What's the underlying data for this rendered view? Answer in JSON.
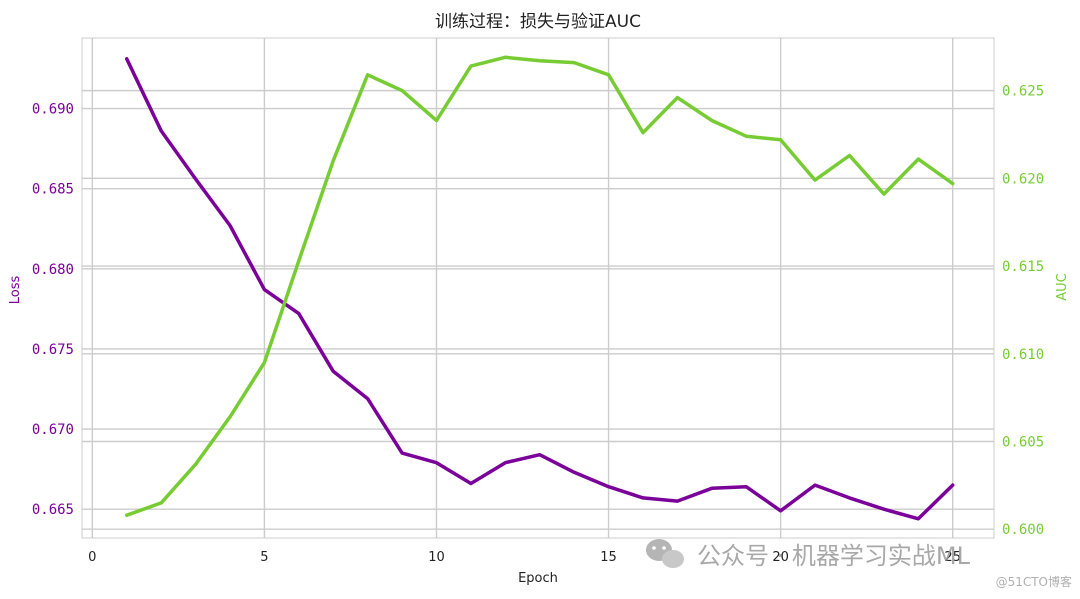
{
  "chart_data": {
    "type": "line",
    "title": "训练过程：损失与验证AUC",
    "xlabel": "Epoch",
    "ylabel_left": "Loss",
    "ylabel_right": "AUC",
    "x": [
      1,
      2,
      3,
      4,
      5,
      6,
      7,
      8,
      9,
      10,
      11,
      12,
      13,
      14,
      15,
      16,
      17,
      18,
      19,
      20,
      21,
      22,
      23,
      24,
      25
    ],
    "xlim": [
      -0.3,
      26.2
    ],
    "xticks": [
      0,
      5,
      10,
      15,
      20,
      25
    ],
    "series": [
      {
        "name": "Loss",
        "axis": "left",
        "color": "#7a0099",
        "values": [
          0.6931,
          0.6886,
          0.6856,
          0.6827,
          0.6787,
          0.6772,
          0.6736,
          0.6719,
          0.6685,
          0.6679,
          0.6666,
          0.6679,
          0.6684,
          0.6673,
          0.6664,
          0.6657,
          0.6655,
          0.6663,
          0.6664,
          0.6649,
          0.6665,
          0.6657,
          0.665,
          0.6644,
          0.6665
        ]
      },
      {
        "name": "AUC",
        "axis": "right",
        "color": "#77cc33",
        "values": [
          0.6008,
          0.6015,
          0.6037,
          0.6064,
          0.6095,
          0.6153,
          0.621,
          0.6259,
          0.625,
          0.6233,
          0.6264,
          0.6269,
          0.6267,
          0.6266,
          0.6259,
          0.6226,
          0.6246,
          0.6233,
          0.6224,
          0.6222,
          0.6199,
          0.6213,
          0.6191,
          0.6211,
          0.6197
        ]
      }
    ],
    "ylim_left": [
      0.6632,
      0.6944
    ],
    "yticks_left": [
      "0.665",
      "0.670",
      "0.675",
      "0.680",
      "0.685",
      "0.690"
    ],
    "ylim_right": [
      0.5995,
      0.628
    ],
    "yticks_right": [
      "0.600",
      "0.605",
      "0.610",
      "0.615",
      "0.620",
      "0.625"
    ],
    "grid": true,
    "left_axis_color": "#7a0099",
    "right_axis_color": "#77cc33"
  },
  "watermark": {
    "main": "公众号 · 机器学习实战ML",
    "sub": "@51CTO博客",
    "icon": "wechat-icon"
  }
}
